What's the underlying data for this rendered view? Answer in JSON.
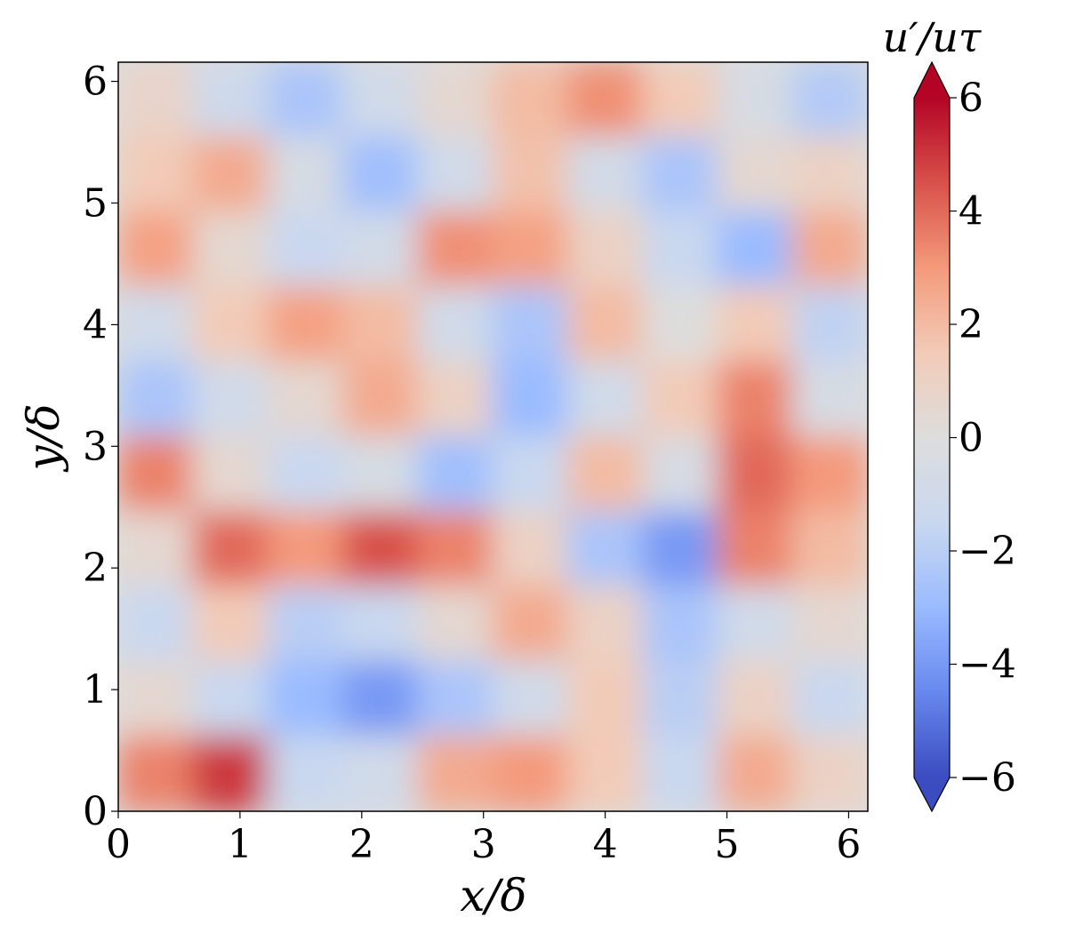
{
  "chart_data": {
    "type": "heatmap",
    "title": "",
    "xlabel": "x/δ",
    "ylabel": "y/δ",
    "xlim": [
      0,
      6.1575
    ],
    "ylim": [
      0,
      6.1575
    ],
    "x_ticks": [
      0,
      1,
      2,
      3,
      4,
      5,
      6
    ],
    "y_ticks": [
      0,
      1,
      2,
      3,
      4,
      5,
      6
    ],
    "colorbar": {
      "label": "u′/uτ",
      "range": [
        -6,
        6
      ],
      "ticks": [
        -6,
        -4,
        -2,
        0,
        2,
        4,
        6
      ],
      "tick_labels": [
        "−6",
        "−4",
        "−2",
        "0",
        "2",
        "4",
        "6"
      ],
      "extend": "both",
      "colormap": "coolwarm",
      "colors": [
        "#3b4cc0",
        "#6788ee",
        "#9abbff",
        "#c9d8ef",
        "#dddddd",
        "#f2cbb7",
        "#f49a7b",
        "#d8514a",
        "#b40426"
      ]
    },
    "grid_rows": 10,
    "grid_cols": 10,
    "field": [
      [
        0.8,
        -1.2,
        -2.5,
        -1.0,
        0.5,
        2.0,
        3.2,
        1.5,
        -0.5,
        -2.2
      ],
      [
        1.5,
        2.5,
        -0.5,
        -2.8,
        -1.0,
        1.8,
        -0.8,
        -2.5,
        0.5,
        1.0
      ],
      [
        2.8,
        0.5,
        -1.5,
        -0.8,
        3.2,
        2.8,
        1.0,
        -1.5,
        -3.0,
        2.5
      ],
      [
        -1.0,
        1.5,
        2.8,
        2.0,
        -1.0,
        -2.5,
        2.0,
        0.0,
        1.5,
        -1.8
      ],
      [
        -2.5,
        -1.0,
        0.5,
        2.5,
        1.0,
        -3.0,
        -1.0,
        1.5,
        3.5,
        -0.5
      ],
      [
        3.5,
        0.5,
        -1.5,
        -0.5,
        -2.8,
        -1.5,
        2.0,
        -0.5,
        4.0,
        3.0
      ],
      [
        0.5,
        4.0,
        3.0,
        4.5,
        3.5,
        1.0,
        -2.5,
        -4.0,
        3.5,
        2.0
      ],
      [
        -1.5,
        1.5,
        -2.0,
        -1.5,
        0.5,
        2.5,
        1.0,
        -2.5,
        -1.0,
        0.5
      ],
      [
        0.5,
        -1.5,
        -3.0,
        -4.0,
        -2.5,
        -1.0,
        1.5,
        -2.0,
        1.0,
        -1.5
      ],
      [
        3.5,
        5.0,
        -1.5,
        -1.0,
        2.5,
        3.0,
        1.5,
        -1.5,
        2.5,
        1.0
      ]
    ]
  }
}
